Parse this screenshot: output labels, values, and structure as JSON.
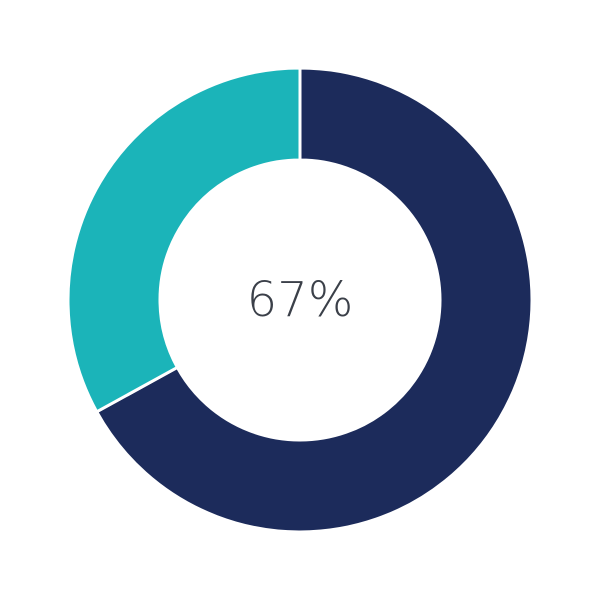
{
  "chart_data": {
    "type": "pie",
    "variant": "donut",
    "center_label": "67%",
    "slices": [
      {
        "value": 67,
        "color": "#1c2b5b"
      },
      {
        "value": 33,
        "color": "#1bb4b9"
      }
    ],
    "start_angle": "top",
    "direction": "clockwise",
    "legend": "none"
  }
}
